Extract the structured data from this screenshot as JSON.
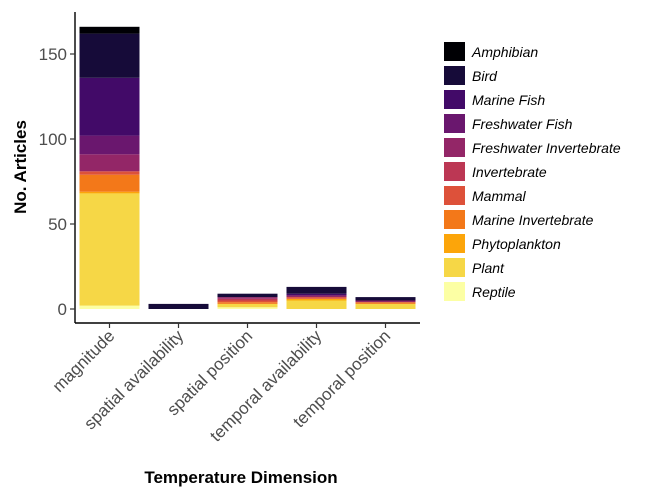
{
  "chart_data": {
    "type": "bar",
    "stacked": true,
    "xlabel": "Temperature Dimension",
    "ylabel": "No. Articles",
    "ylim": [
      0,
      175
    ],
    "yticks": [
      0,
      50,
      100,
      150
    ],
    "grid": false,
    "legend_position": "right",
    "categories": [
      "magnitude",
      "spatial availability",
      "spatial position",
      "temporal availability",
      "temporal position"
    ],
    "series": [
      {
        "name": "Amphibian",
        "color": "#000004",
        "values": [
          4,
          0,
          0,
          0,
          0
        ]
      },
      {
        "name": "Bird",
        "color": "#160b39",
        "values": [
          26,
          3,
          2,
          4,
          2
        ]
      },
      {
        "name": "Marine Fish",
        "color": "#420a68",
        "values": [
          34,
          0,
          0,
          1,
          0
        ]
      },
      {
        "name": "Freshwater Fish",
        "color": "#6a176e",
        "values": [
          11,
          0,
          0,
          0,
          0
        ]
      },
      {
        "name": "Freshwater Invertebrate",
        "color": "#932667",
        "values": [
          10,
          0,
          1,
          1,
          1
        ]
      },
      {
        "name": "Invertebrate",
        "color": "#bc3754",
        "values": [
          0,
          0,
          1,
          0,
          0
        ]
      },
      {
        "name": "Mammal",
        "color": "#dd513a",
        "values": [
          2,
          0,
          1,
          1,
          0
        ]
      },
      {
        "name": "Marine Invertebrate",
        "color": "#f37819",
        "values": [
          10,
          0,
          1,
          0,
          1
        ]
      },
      {
        "name": "Phytoplankton",
        "color": "#fca50a",
        "values": [
          1,
          0,
          0,
          1,
          0
        ]
      },
      {
        "name": "Plant",
        "color": "#f6d746",
        "values": [
          66,
          0,
          2,
          5,
          3
        ]
      },
      {
        "name": "Reptile",
        "color": "#fcffa4",
        "values": [
          2,
          0,
          1,
          0,
          0
        ]
      }
    ]
  }
}
